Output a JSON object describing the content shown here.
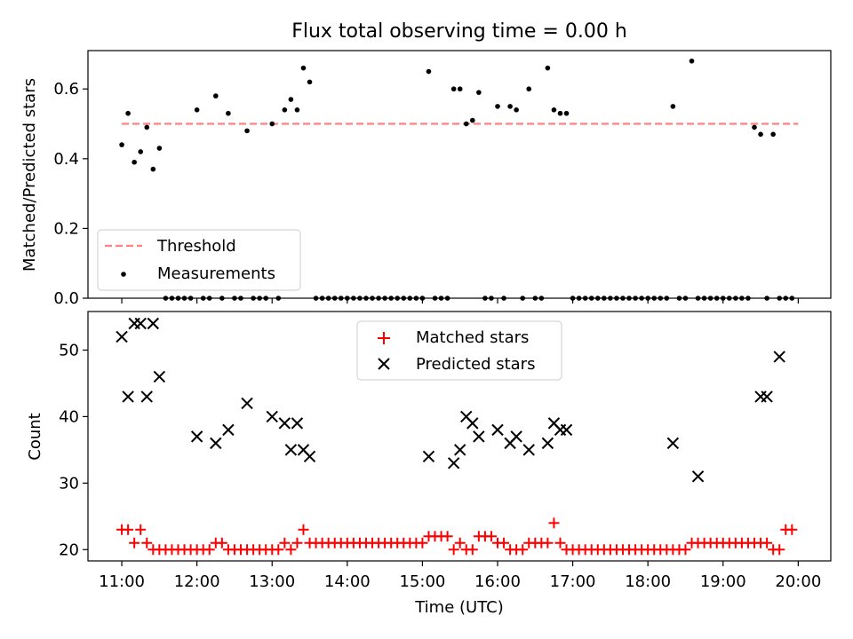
{
  "chart_data": [
    {
      "type": "scatter",
      "title": "Flux total observing time = 0.00 h",
      "xlabel": "",
      "ylabel": "Matched/Predicted stars",
      "ylim": [
        0,
        0.71
      ],
      "yticks": [
        0.0,
        0.2,
        0.4,
        0.6
      ],
      "ytick_labels": [
        "0.0",
        "0.2",
        "0.4",
        "0.6"
      ],
      "legend": {
        "placement": "lower-left",
        "entries": [
          "Threshold",
          "Measurements"
        ]
      },
      "threshold": {
        "name": "Threshold",
        "value": 0.5,
        "x_range": [
          "11:00",
          "20:00"
        ],
        "color": "#ff8080",
        "style": "dashed"
      },
      "series": [
        {
          "name": "Measurements",
          "color": "#000000",
          "x": [
            "11:00",
            "11:05",
            "11:10",
            "11:15",
            "11:20",
            "11:25",
            "11:30",
            "11:35",
            "11:40",
            "11:45",
            "11:50",
            "11:55",
            "12:00",
            "12:05",
            "12:10",
            "12:15",
            "12:20",
            "12:25",
            "12:30",
            "12:35",
            "12:40",
            "12:45",
            "12:50",
            "12:55",
            "13:00",
            "13:05",
            "13:10",
            "13:15",
            "13:20",
            "13:25",
            "13:30",
            "13:35",
            "13:40",
            "13:45",
            "13:50",
            "13:55",
            "14:00",
            "14:05",
            "14:10",
            "14:15",
            "14:20",
            "14:25",
            "14:30",
            "14:35",
            "14:40",
            "14:45",
            "14:50",
            "14:55",
            "15:00",
            "15:05",
            "15:10",
            "15:15",
            "15:20",
            "15:25",
            "15:30",
            "15:35",
            "15:40",
            "15:45",
            "15:50",
            "15:55",
            "16:00",
            "16:05",
            "16:10",
            "16:15",
            "16:20",
            "16:25",
            "16:30",
            "16:35",
            "16:40",
            "16:45",
            "16:50",
            "16:55",
            "17:00",
            "17:05",
            "17:10",
            "17:15",
            "17:20",
            "17:25",
            "17:30",
            "17:35",
            "17:40",
            "17:45",
            "17:50",
            "17:55",
            "18:00",
            "18:05",
            "18:10",
            "18:15",
            "18:20",
            "18:25",
            "18:30",
            "18:35",
            "18:40",
            "18:45",
            "18:50",
            "18:55",
            "19:00",
            "19:05",
            "19:10",
            "19:15",
            "19:20",
            "19:25",
            "19:30",
            "19:35",
            "19:40",
            "19:45",
            "19:50",
            "19:55"
          ],
          "y": [
            0.44,
            0.53,
            0.39,
            0.42,
            0.49,
            0.37,
            0.43,
            0,
            0,
            0,
            0,
            0,
            0.54,
            0,
            0,
            0.58,
            0,
            0.53,
            0,
            0,
            0.48,
            0,
            0,
            0,
            0.5,
            0,
            0.54,
            0.57,
            0.54,
            0.66,
            0.62,
            0,
            0,
            0,
            0,
            0,
            0,
            0,
            0,
            0,
            0,
            0,
            0,
            0,
            0,
            0,
            0,
            0,
            0,
            0.65,
            0,
            0,
            0,
            0.6,
            0.6,
            0.5,
            0.51,
            0.59,
            0,
            0,
            0.55,
            0,
            0.55,
            0.54,
            0,
            0.6,
            0,
            0,
            0.66,
            0.54,
            0.53,
            0.53,
            0,
            0,
            0,
            0,
            0,
            0,
            0,
            0,
            0,
            0,
            0,
            0,
            0,
            0,
            0,
            0,
            0.55,
            0,
            0,
            0.68,
            0,
            0,
            0,
            0,
            0,
            0,
            0,
            0,
            0,
            0.49,
            0.47,
            0,
            0.47,
            0,
            0,
            0
          ]
        }
      ]
    },
    {
      "type": "scatter",
      "title": "",
      "xlabel": "Time (UTC)",
      "ylabel": "Count",
      "ylim": [
        18.3,
        55.8
      ],
      "yticks": [
        20,
        30,
        40,
        50
      ],
      "ytick_labels": [
        "20",
        "30",
        "40",
        "50"
      ],
      "xlim": [
        "10:33",
        "20:26"
      ],
      "xticks": [
        "11:00",
        "12:00",
        "13:00",
        "14:00",
        "15:00",
        "16:00",
        "17:00",
        "18:00",
        "19:00",
        "20:00"
      ],
      "legend": {
        "placement": "top-center",
        "entries": [
          "Matched stars",
          "Predicted stars"
        ]
      },
      "series": [
        {
          "name": "Matched stars",
          "marker": "plus",
          "color": "#ff0000",
          "x": [
            "11:00",
            "11:05",
            "11:10",
            "11:15",
            "11:20",
            "11:25",
            "11:30",
            "11:35",
            "11:40",
            "11:45",
            "11:50",
            "11:55",
            "12:00",
            "12:05",
            "12:10",
            "12:15",
            "12:20",
            "12:25",
            "12:30",
            "12:35",
            "12:40",
            "12:45",
            "12:50",
            "12:55",
            "13:00",
            "13:05",
            "13:10",
            "13:15",
            "13:20",
            "13:25",
            "13:30",
            "13:35",
            "13:40",
            "13:45",
            "13:50",
            "13:55",
            "14:00",
            "14:05",
            "14:10",
            "14:15",
            "14:20",
            "14:25",
            "14:30",
            "14:35",
            "14:40",
            "14:45",
            "14:50",
            "14:55",
            "15:00",
            "15:05",
            "15:10",
            "15:15",
            "15:20",
            "15:25",
            "15:30",
            "15:35",
            "15:40",
            "15:45",
            "15:50",
            "15:55",
            "16:00",
            "16:05",
            "16:10",
            "16:15",
            "16:20",
            "16:25",
            "16:30",
            "16:35",
            "16:40",
            "16:45",
            "16:50",
            "16:55",
            "17:00",
            "17:05",
            "17:10",
            "17:15",
            "17:20",
            "17:25",
            "17:30",
            "17:35",
            "17:40",
            "17:45",
            "17:50",
            "17:55",
            "18:00",
            "18:05",
            "18:10",
            "18:15",
            "18:20",
            "18:25",
            "18:30",
            "18:35",
            "18:40",
            "18:45",
            "18:50",
            "18:55",
            "19:00",
            "19:05",
            "19:10",
            "19:15",
            "19:20",
            "19:25",
            "19:30",
            "19:35",
            "19:40",
            "19:45",
            "19:50",
            "19:55"
          ],
          "y": [
            23,
            23,
            21,
            23,
            21,
            20,
            20,
            20,
            20,
            20,
            20,
            20,
            20,
            20,
            20,
            21,
            21,
            20,
            20,
            20,
            20,
            20,
            20,
            20,
            20,
            20,
            21,
            20,
            21,
            23,
            21,
            21,
            21,
            21,
            21,
            21,
            21,
            21,
            21,
            21,
            21,
            21,
            21,
            21,
            21,
            21,
            21,
            21,
            21,
            22,
            22,
            22,
            22,
            20,
            21,
            20,
            20,
            22,
            22,
            22,
            21,
            21,
            20,
            20,
            20,
            21,
            21,
            21,
            21,
            24,
            21,
            20,
            20,
            20,
            20,
            20,
            20,
            20,
            20,
            20,
            20,
            20,
            20,
            20,
            20,
            20,
            20,
            20,
            20,
            20,
            20,
            21,
            21,
            21,
            21,
            21,
            21,
            21,
            21,
            21,
            21,
            21,
            21,
            21,
            20,
            20,
            23,
            23
          ]
        },
        {
          "name": "Predicted stars",
          "marker": "x",
          "color": "#000000",
          "x": [
            "11:00",
            "11:05",
            "11:10",
            "11:15",
            "11:20",
            "11:25",
            "11:30",
            "12:00",
            "12:15",
            "12:25",
            "12:40",
            "13:00",
            "13:10",
            "13:15",
            "13:20",
            "13:25",
            "13:30",
            "15:05",
            "15:25",
            "15:30",
            "15:35",
            "15:40",
            "15:45",
            "16:00",
            "16:10",
            "16:15",
            "16:25",
            "16:40",
            "16:45",
            "16:50",
            "16:55",
            "18:20",
            "18:40",
            "19:30",
            "19:35",
            "19:45"
          ],
          "y": [
            52,
            43,
            54,
            54,
            43,
            54,
            46,
            37,
            36,
            38,
            42,
            40,
            39,
            35,
            39,
            35,
            34,
            34,
            33,
            35,
            40,
            39,
            37,
            38,
            36,
            37,
            35,
            36,
            39,
            38,
            38,
            36,
            31,
            43,
            43,
            49
          ]
        }
      ]
    }
  ]
}
